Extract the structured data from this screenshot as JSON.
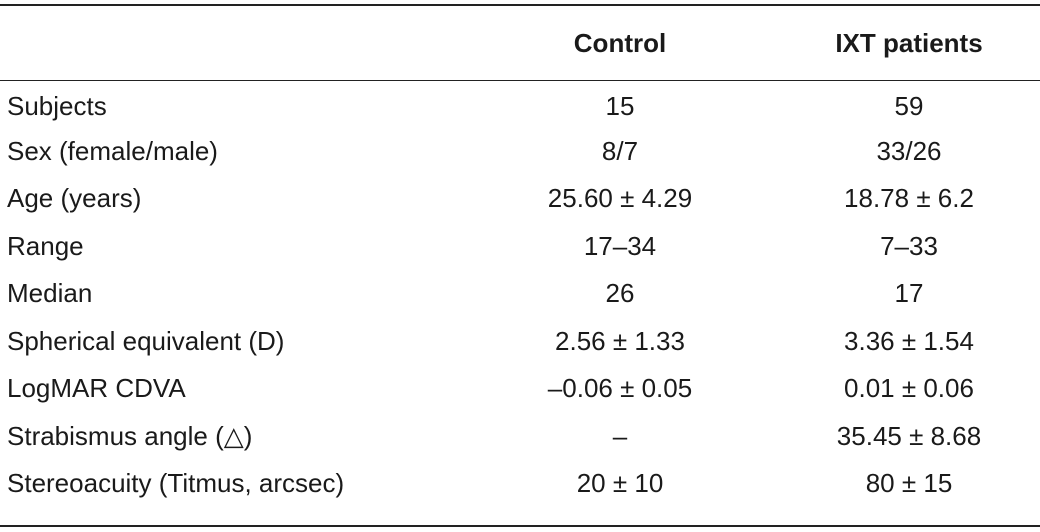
{
  "table": {
    "columns": [
      "",
      "Control",
      "IXT patients"
    ],
    "rows": [
      {
        "label": "Subjects",
        "control": "15",
        "ixt": "59"
      },
      {
        "label": "Sex (female/male)",
        "control": "8/7",
        "ixt": "33/26"
      },
      {
        "label": "Age (years)",
        "control": "25.60 ± 4.29",
        "ixt": "18.78 ± 6.2"
      },
      {
        "label": "Range",
        "control": "17–34",
        "ixt": "7–33"
      },
      {
        "label": "Median",
        "control": "26",
        "ixt": "17"
      },
      {
        "label": "Spherical equivalent (D)",
        "control": "2.56 ± 1.33",
        "ixt": "3.36 ± 1.54"
      },
      {
        "label": "LogMAR CDVA",
        "control": "–0.06 ± 0.05",
        "ixt": "0.01 ± 0.06"
      },
      {
        "label": "Strabismus angle (△)",
        "control": "–",
        "ixt": "35.45 ± 8.68"
      },
      {
        "label": "Stereoacuity (Titmus, arcsec)",
        "control": "20 ± 10",
        "ixt": "80 ± 15"
      }
    ]
  }
}
